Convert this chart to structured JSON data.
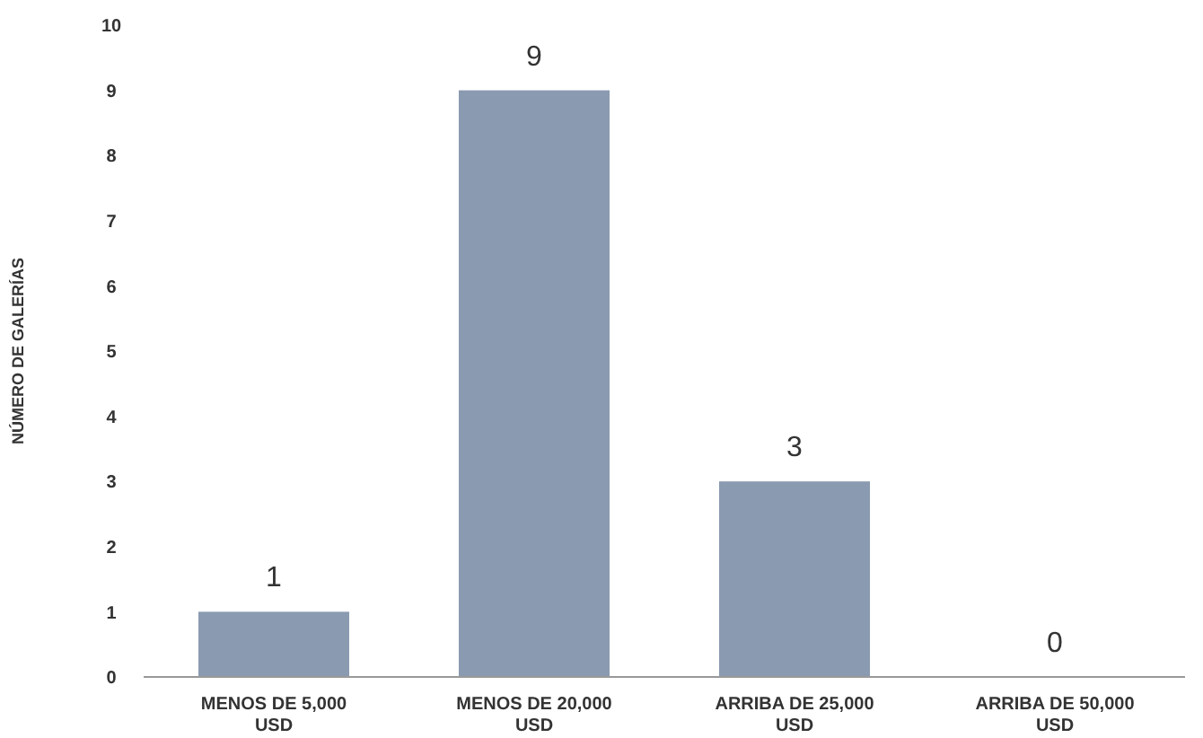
{
  "chart_data": {
    "type": "bar",
    "ylabel": "NÚMERO DE GALERÍAS",
    "categories": [
      "MENOS DE 5,000 USD",
      "MENOS DE 20,000 USD",
      "ARRIBA DE 25,000 USD",
      "ARRIBA DE 50,000 USD"
    ],
    "values": [
      1,
      9,
      3,
      0
    ],
    "color": "#8a9ab0",
    "ylim": [
      0,
      10
    ],
    "yticks": [
      0,
      1,
      2,
      3,
      4,
      5,
      6,
      7,
      8,
      9,
      10
    ],
    "grid": false,
    "legend": false,
    "data_labels": true
  }
}
